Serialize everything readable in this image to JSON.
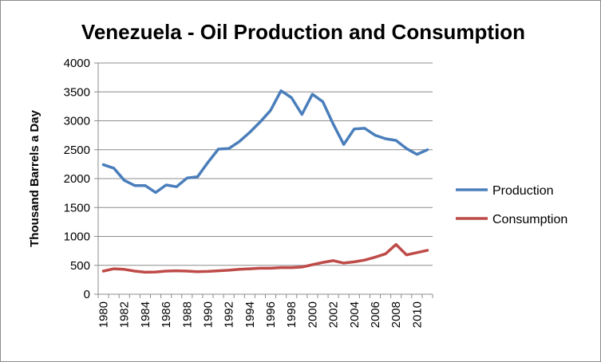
{
  "chart_data": {
    "type": "line",
    "title": "Venezuela - Oil Production and Consumption",
    "ylabel": "Thousand Barrels a Day",
    "xlabel": "",
    "ylim": [
      0,
      4000
    ],
    "yticks": [
      0,
      500,
      1000,
      1500,
      2000,
      2500,
      3000,
      3500,
      4000
    ],
    "x": [
      1980,
      1981,
      1982,
      1983,
      1984,
      1985,
      1986,
      1987,
      1988,
      1989,
      1990,
      1991,
      1992,
      1993,
      1994,
      1995,
      1996,
      1997,
      1998,
      1999,
      2000,
      2001,
      2002,
      2003,
      2004,
      2005,
      2006,
      2007,
      2008,
      2009,
      2010,
      2011
    ],
    "xtick_labels": [
      "1980",
      "1982",
      "1984",
      "1986",
      "1988",
      "1990",
      "1992",
      "1994",
      "1996",
      "1998",
      "2000",
      "2002",
      "2004",
      "2006",
      "2008",
      "2010"
    ],
    "grid": true,
    "legend_position": "right",
    "series": [
      {
        "name": "Production",
        "color": "#4a7ebb",
        "values": [
          2240,
          2180,
          1970,
          1880,
          1880,
          1760,
          1890,
          1860,
          2010,
          2030,
          2280,
          2510,
          2520,
          2640,
          2800,
          2980,
          3180,
          3520,
          3400,
          3110,
          3460,
          3330,
          2940,
          2590,
          2860,
          2870,
          2750,
          2690,
          2660,
          2520,
          2420,
          2500
        ]
      },
      {
        "name": "Consumption",
        "color": "#be4b48",
        "values": [
          400,
          440,
          430,
          400,
          380,
          385,
          400,
          405,
          400,
          390,
          395,
          405,
          415,
          430,
          440,
          450,
          450,
          460,
          460,
          470,
          510,
          550,
          580,
          540,
          560,
          590,
          640,
          700,
          860,
          680,
          720,
          760
        ]
      }
    ]
  }
}
